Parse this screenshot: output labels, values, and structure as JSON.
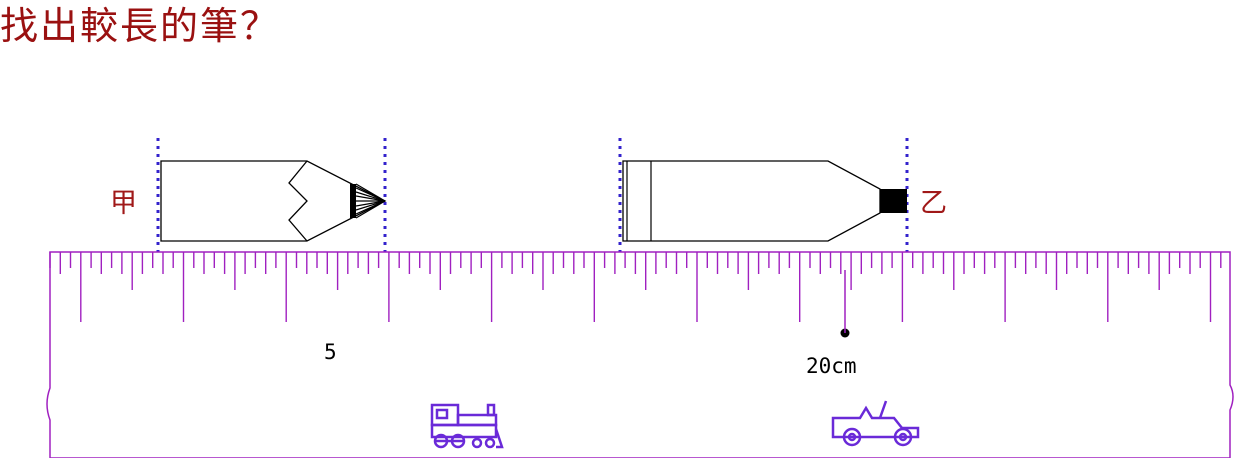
{
  "title": "找出較長的筆？",
  "pencil_a": {
    "label": "甲"
  },
  "pencil_b": {
    "label": "乙"
  },
  "ruler": {
    "label_5": "5",
    "label_20": "20cm",
    "icons": [
      "train-icon",
      "jeep-icon"
    ]
  },
  "colors": {
    "title": "#9a1111",
    "ruler": "#a020c0",
    "guide_lines": "#3322cc",
    "vehicles": "#6a2ad8"
  }
}
